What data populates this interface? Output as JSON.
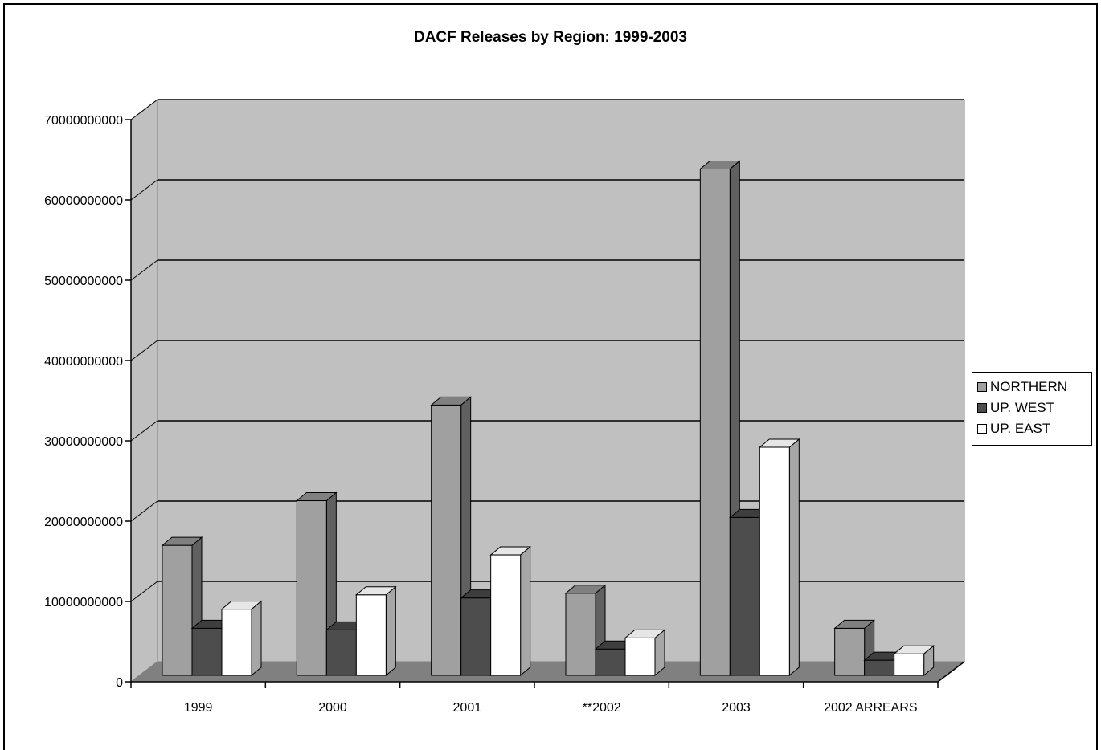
{
  "chart_data": {
    "type": "bar",
    "title": "DACF Releases by Region: 1999-2003",
    "categories": [
      "1999",
      "2000",
      "2001",
      "**2002",
      "2003",
      "2002 ARREARS"
    ],
    "series": [
      {
        "name": "NORTHERN",
        "color": "#a0a0a0",
        "values": [
          16300000000,
          21900000000,
          33900000000,
          10300000000,
          63500000000,
          5900000000
        ]
      },
      {
        "name": "UP. WEST",
        "color": "#4d4d4d",
        "values": [
          5900000000,
          5700000000,
          9700000000,
          3300000000,
          19800000000,
          1900000000
        ]
      },
      {
        "name": "UP. EAST",
        "color": "#ffffff",
        "values": [
          8300000000,
          10100000000,
          15100000000,
          4700000000,
          28600000000,
          2700000000
        ]
      }
    ],
    "ylim": [
      0,
      70000000000
    ],
    "yticks": [
      "0",
      "10000000000",
      "20000000000",
      "30000000000",
      "40000000000",
      "50000000000",
      "60000000000",
      "70000000000"
    ],
    "grid": true,
    "legend_position": "right",
    "xlabel": "",
    "ylabel": ""
  }
}
